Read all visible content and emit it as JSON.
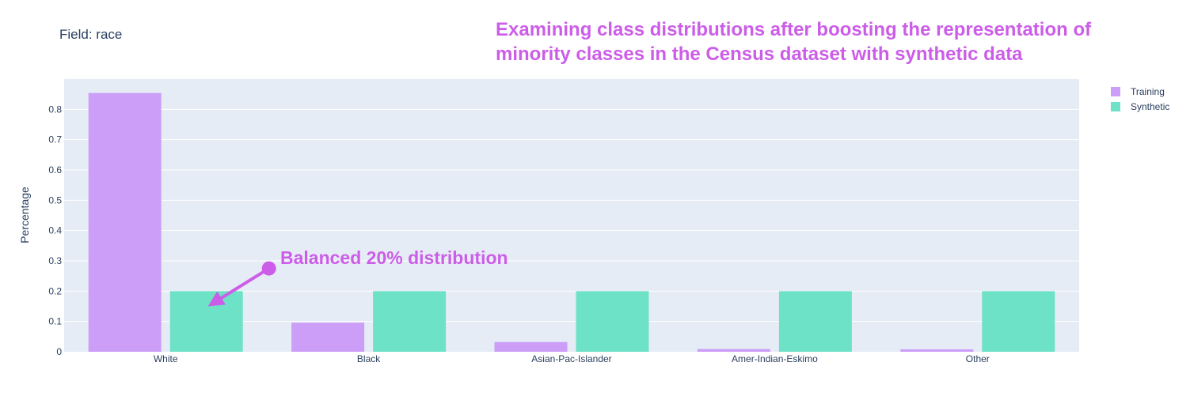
{
  "field_title": "Field: race",
  "headline": [
    "Examining class distributions after boosting the representation of",
    "minority classes in the Census dataset with synthetic data"
  ],
  "colors": {
    "training": "#cc9ef8",
    "synthetic": "#6ee2c6",
    "accent": "#cc5de8",
    "plot_bg": "#e5ecf6",
    "grid": "#ffffff",
    "text": "#2a3f5f"
  },
  "chart_data": {
    "type": "bar",
    "categories": [
      "White",
      "Black",
      "Asian-Pac-Islander",
      "Amer-Indian-Eskimo",
      "Other"
    ],
    "series": [
      {
        "name": "Training",
        "values": [
          0.854,
          0.096,
          0.032,
          0.009,
          0.008
        ]
      },
      {
        "name": "Synthetic",
        "values": [
          0.2,
          0.2,
          0.2,
          0.2,
          0.2
        ]
      }
    ],
    "title": "",
    "xlabel": "",
    "ylabel": "Percentage",
    "ylim": [
      0,
      0.9
    ],
    "yticks": [
      0,
      0.1,
      0.2,
      0.3,
      0.4,
      0.5,
      0.6,
      0.7,
      0.8
    ],
    "ytick_labels": [
      "0",
      "0.1",
      "0.2",
      "0.3",
      "0.4",
      "0.5",
      "0.6",
      "0.7",
      "0.8"
    ],
    "grid": true,
    "legend_position": "top-right",
    "annotation": {
      "text": "Balanced 20% distribution",
      "target_category": "White",
      "target_series": "Synthetic",
      "target_value": 0.15,
      "start_value": 0.275
    }
  }
}
